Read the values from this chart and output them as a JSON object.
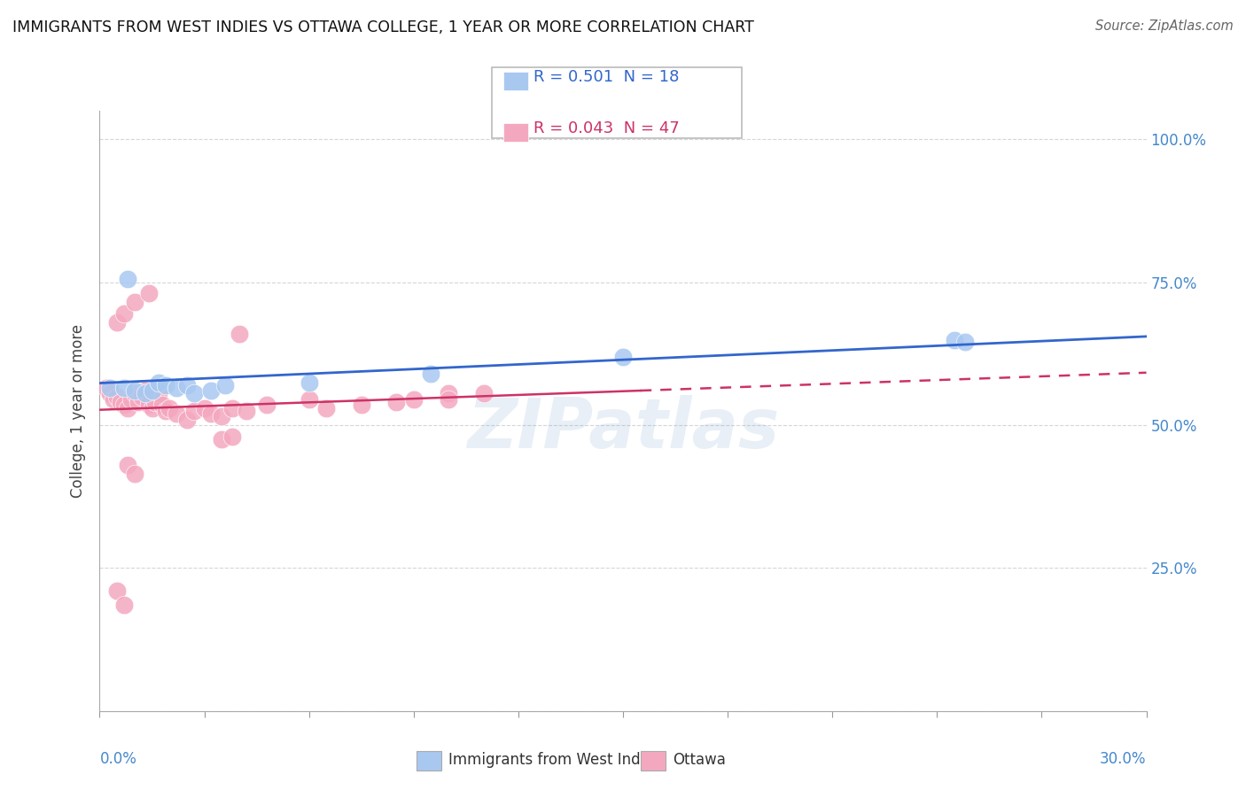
{
  "title": "IMMIGRANTS FROM WEST INDIES VS OTTAWA COLLEGE, 1 YEAR OR MORE CORRELATION CHART",
  "source": "Source: ZipAtlas.com",
  "ylabel": "College, 1 year or more",
  "xlim": [
    0.0,
    0.3
  ],
  "ylim": [
    0.0,
    1.05
  ],
  "right_yticks": [
    1.0,
    0.75,
    0.5,
    0.25
  ],
  "right_yticklabels": [
    "100.0%",
    "75.0%",
    "50.0%",
    "25.0%"
  ],
  "legend1_r": "0.501",
  "legend1_n": "18",
  "legend2_r": "0.043",
  "legend2_n": "47",
  "blue_color": "#a8c8f0",
  "pink_color": "#f4a8c0",
  "blue_line_color": "#3366cc",
  "pink_line_color": "#cc3366",
  "watermark": "ZIPatlas",
  "background_color": "#ffffff",
  "grid_color": "#cccccc",
  "blue_scatter": [
    [
      0.003,
      0.565
    ],
    [
      0.007,
      0.565
    ],
    [
      0.01,
      0.56
    ],
    [
      0.013,
      0.555
    ],
    [
      0.015,
      0.56
    ],
    [
      0.017,
      0.575
    ],
    [
      0.019,
      0.57
    ],
    [
      0.022,
      0.565
    ],
    [
      0.025,
      0.57
    ],
    [
      0.027,
      0.555
    ],
    [
      0.032,
      0.56
    ],
    [
      0.036,
      0.57
    ],
    [
      0.06,
      0.575
    ],
    [
      0.095,
      0.59
    ],
    [
      0.15,
      0.62
    ],
    [
      0.245,
      0.648
    ],
    [
      0.248,
      0.645
    ],
    [
      0.008,
      0.755
    ]
  ],
  "pink_scatter": [
    [
      0.002,
      0.565
    ],
    [
      0.003,
      0.555
    ],
    [
      0.004,
      0.545
    ],
    [
      0.005,
      0.55
    ],
    [
      0.006,
      0.54
    ],
    [
      0.007,
      0.535
    ],
    [
      0.008,
      0.53
    ],
    [
      0.009,
      0.545
    ],
    [
      0.01,
      0.555
    ],
    [
      0.011,
      0.54
    ],
    [
      0.012,
      0.55
    ],
    [
      0.013,
      0.56
    ],
    [
      0.014,
      0.535
    ],
    [
      0.015,
      0.53
    ],
    [
      0.016,
      0.54
    ],
    [
      0.017,
      0.555
    ],
    [
      0.018,
      0.535
    ],
    [
      0.019,
      0.525
    ],
    [
      0.02,
      0.53
    ],
    [
      0.022,
      0.52
    ],
    [
      0.025,
      0.51
    ],
    [
      0.027,
      0.525
    ],
    [
      0.03,
      0.53
    ],
    [
      0.032,
      0.52
    ],
    [
      0.035,
      0.515
    ],
    [
      0.038,
      0.53
    ],
    [
      0.042,
      0.525
    ],
    [
      0.048,
      0.535
    ],
    [
      0.06,
      0.545
    ],
    [
      0.065,
      0.53
    ],
    [
      0.075,
      0.535
    ],
    [
      0.085,
      0.54
    ],
    [
      0.09,
      0.545
    ],
    [
      0.1,
      0.555
    ],
    [
      0.11,
      0.555
    ],
    [
      0.005,
      0.68
    ],
    [
      0.007,
      0.695
    ],
    [
      0.01,
      0.715
    ],
    [
      0.014,
      0.73
    ],
    [
      0.04,
      0.66
    ],
    [
      0.008,
      0.43
    ],
    [
      0.01,
      0.415
    ],
    [
      0.035,
      0.475
    ],
    [
      0.038,
      0.48
    ],
    [
      0.1,
      0.545
    ],
    [
      0.005,
      0.21
    ],
    [
      0.007,
      0.185
    ]
  ]
}
